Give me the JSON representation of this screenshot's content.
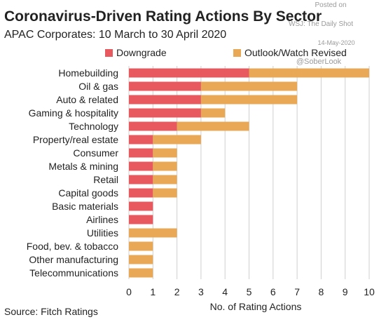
{
  "chart_data": {
    "type": "bar",
    "orientation": "horizontal",
    "stacked": true,
    "title": "Coronavirus-Driven Rating Actions By Sector",
    "subtitle": "APAC Corporates: 10 March to 30 April 2020",
    "xlabel": "No. of Rating Actions",
    "ylabel": "",
    "xlim": [
      0,
      10
    ],
    "x_ticks": [
      "0",
      "1",
      "2",
      "3",
      "4",
      "5",
      "6",
      "7",
      "8",
      "9",
      "10"
    ],
    "grid": "vertical",
    "legend_position": "top",
    "categories": [
      "Homebuilding",
      "Oil & gas",
      "Auto & related",
      "Gaming & hospitality",
      "Technology",
      "Property/real estate",
      "Consumer",
      "Metals & mining",
      "Retail",
      "Capital goods",
      "Basic materials",
      "Airlines",
      "Utilities",
      "Food, bev. & tobacco",
      "Other manufacturing",
      "Telecommunications"
    ],
    "series": [
      {
        "name": "Downgrade",
        "color": "#e8585f",
        "values": [
          5,
          3,
          3,
          3,
          2,
          1,
          1,
          1,
          1,
          1,
          1,
          1,
          0,
          0,
          0,
          0
        ]
      },
      {
        "name": "Outlook/Watch Revised",
        "color": "#e8a855",
        "values": [
          5,
          4,
          4,
          1,
          3,
          2,
          1,
          1,
          1,
          1,
          0,
          0,
          2,
          1,
          1,
          1
        ]
      }
    ],
    "source": "Source: Fitch Ratings"
  },
  "watermark": {
    "line1": "Posted on",
    "line2": "WSJ: The Daily Shot",
    "line3": "14-May-2020",
    "line4": "@SoberLook"
  },
  "colors": {
    "downgrade": "#e8585f",
    "outlook": "#e8a855",
    "gridline": "#cfcfcf",
    "axis_text": "#222222"
  }
}
